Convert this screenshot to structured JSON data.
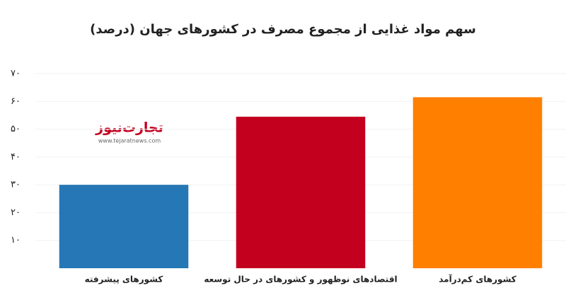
{
  "chart_data": {
    "type": "bar",
    "title": "سهم مواد غذایی از مجموع مصرف در کشورهای جهان (درصد)",
    "categories": [
      "کشورهای پیشرفته",
      "اقتصادهای نوظهور و کشورهای در حال توسعه",
      "کشورهای کم‌درآمد"
    ],
    "values": [
      30,
      54.5,
      61.5
    ],
    "colors": [
      "#2577b5",
      "#c4001f",
      "#ff7f00"
    ],
    "ylim": [
      0,
      70
    ],
    "yticks": [
      {
        "value": 10,
        "label": "۱۰"
      },
      {
        "value": 20,
        "label": "۲۰"
      },
      {
        "value": 30,
        "label": "۳۰"
      },
      {
        "value": 40,
        "label": "۴۰"
      },
      {
        "value": 50,
        "label": "۵۰"
      },
      {
        "value": 60,
        "label": "۶۰"
      },
      {
        "value": 70,
        "label": "۷۰"
      }
    ],
    "grid": true,
    "watermark": {
      "text": "تجارت‌نیوز",
      "url": "www.tejaratnews.com"
    }
  }
}
